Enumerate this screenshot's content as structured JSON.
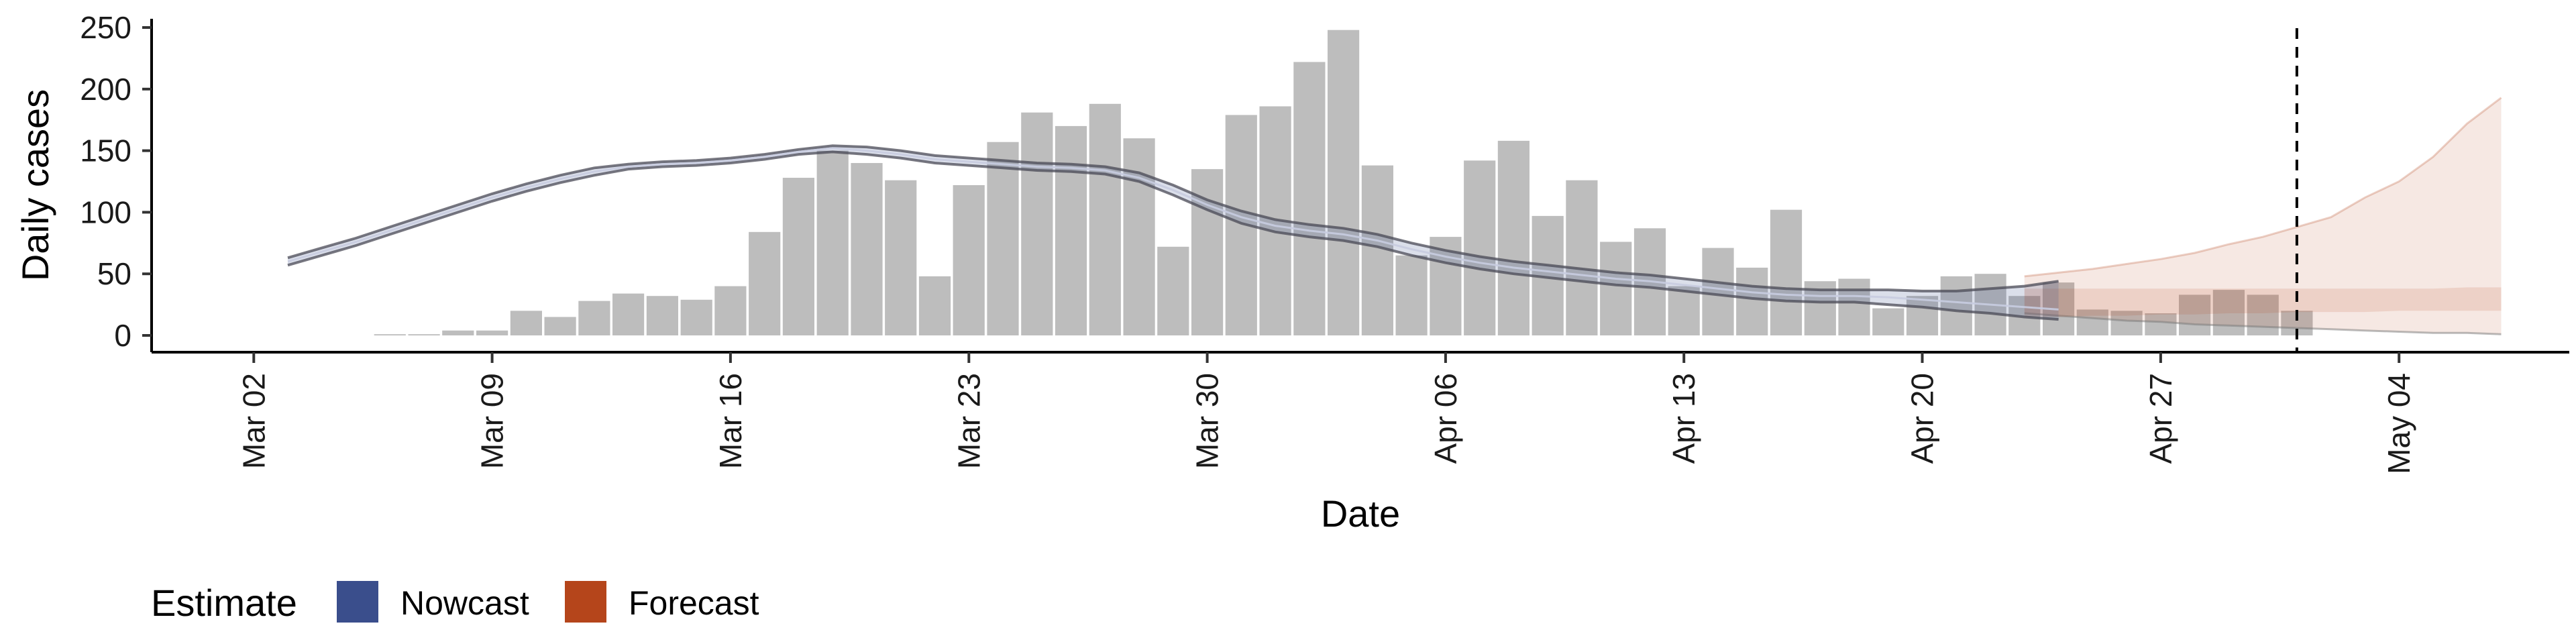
{
  "chart_data": {
    "type": "bar",
    "xlabel": "Date",
    "ylabel": "Daily cases",
    "ylim": [
      0,
      262
    ],
    "yticks": [
      0,
      50,
      100,
      150,
      200,
      250
    ],
    "xlim": [
      "2020-02-28",
      "2020-05-09"
    ],
    "xticks": [
      {
        "date": "2020-03-02",
        "label": "Mar 02"
      },
      {
        "date": "2020-03-09",
        "label": "Mar 09"
      },
      {
        "date": "2020-03-16",
        "label": "Mar 16"
      },
      {
        "date": "2020-03-23",
        "label": "Mar 23"
      },
      {
        "date": "2020-03-30",
        "label": "Mar 30"
      },
      {
        "date": "2020-04-06",
        "label": "Apr 06"
      },
      {
        "date": "2020-04-13",
        "label": "Apr 13"
      },
      {
        "date": "2020-04-20",
        "label": "Apr 20"
      },
      {
        "date": "2020-04-27",
        "label": "Apr 27"
      },
      {
        "date": "2020-05-04",
        "label": "May 04"
      }
    ],
    "vline_date": "2020-05-01",
    "bars": {
      "start_date": "2020-03-06",
      "color": "#bdbdbd",
      "values": [
        1,
        1,
        4,
        4,
        20,
        15,
        28,
        34,
        32,
        29,
        40,
        84,
        128,
        150,
        140,
        126,
        48,
        122,
        157,
        181,
        170,
        188,
        160,
        72,
        135,
        179,
        186,
        222,
        248,
        138,
        65,
        80,
        142,
        158,
        97,
        126,
        76,
        87,
        40,
        71,
        55,
        102,
        44,
        46,
        22,
        32,
        48,
        50,
        32,
        43,
        21,
        20,
        18,
        33,
        37,
        33,
        20
      ]
    },
    "nowcast": {
      "color": "#3a4e8c",
      "start_date": "2020-03-03",
      "median": [
        60,
        68,
        76,
        85,
        94,
        103,
        112,
        120,
        127,
        133,
        137,
        139,
        140,
        142,
        145,
        149,
        152,
        150,
        147,
        143,
        141,
        139,
        137,
        136,
        134,
        128,
        118,
        106,
        96,
        89,
        85,
        82,
        77,
        70,
        64,
        59,
        55,
        52,
        49,
        46,
        44,
        41,
        38,
        35,
        33,
        32,
        32,
        31,
        29,
        27,
        25,
        23,
        21
      ],
      "lower": [
        57,
        65,
        73,
        82,
        91,
        100,
        109,
        117,
        124,
        130,
        135,
        137,
        138,
        140,
        143,
        147,
        149,
        147,
        144,
        140,
        138,
        136,
        134,
        133,
        131,
        125,
        114,
        102,
        91,
        84,
        80,
        77,
        72,
        65,
        59,
        54,
        50,
        47,
        44,
        41,
        39,
        36,
        33,
        30,
        28,
        27,
        27,
        25,
        23,
        20,
        18,
        15,
        13
      ],
      "upper": [
        63,
        71,
        79,
        88,
        97,
        106,
        115,
        123,
        130,
        136,
        139,
        141,
        142,
        144,
        147,
        151,
        154,
        153,
        150,
        146,
        144,
        142,
        140,
        139,
        137,
        132,
        122,
        110,
        101,
        94,
        90,
        87,
        82,
        75,
        69,
        64,
        60,
        57,
        54,
        51,
        49,
        46,
        43,
        40,
        38,
        37,
        37,
        37,
        36,
        36,
        38,
        40,
        44
      ]
    },
    "forecast": {
      "color": "#b5451b",
      "start_date": "2020-04-23",
      "median": [
        27,
        28,
        29,
        30,
        31,
        32,
        33,
        34,
        34,
        35,
        35,
        36,
        36,
        37,
        37
      ],
      "lower": [
        18,
        16,
        14,
        12,
        11,
        9,
        8,
        7,
        6,
        5,
        4,
        3,
        2,
        2,
        1
      ],
      "upper": [
        48,
        51,
        54,
        58,
        62,
        67,
        74,
        80,
        88,
        96,
        112,
        125,
        145,
        172,
        193
      ],
      "inner_lower": [
        15,
        15,
        16,
        16,
        17,
        17,
        18,
        18,
        19,
        19,
        19,
        20,
        20,
        20,
        20
      ],
      "inner_upper": [
        38,
        38,
        38,
        38,
        38,
        38,
        38,
        38,
        38,
        38,
        38,
        38,
        38,
        39,
        39
      ]
    },
    "legend": {
      "title": "Estimate",
      "items": [
        {
          "label": "Nowcast",
          "color": "#3a4e8c"
        },
        {
          "label": "Forecast",
          "color": "#b5451b"
        }
      ],
      "position": "bottom-left"
    }
  }
}
